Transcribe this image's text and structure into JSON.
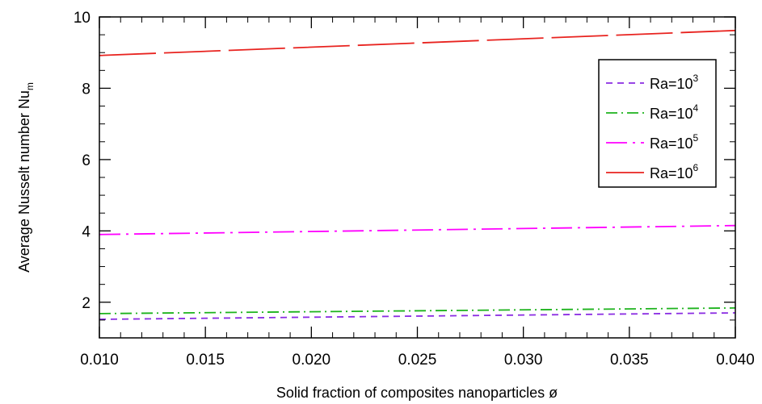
{
  "chart_data": {
    "type": "line",
    "title": "",
    "xlabel": "Solid fraction of composites nanoparticles ø",
    "ylabel_main": "Average Nusselt number Nu",
    "ylabel_sub": "m",
    "xlim": [
      0.01,
      0.04
    ],
    "ylim": [
      1.0,
      10.0
    ],
    "x_ticks": [
      0.01,
      0.015,
      0.02,
      0.025,
      0.03,
      0.035,
      0.04
    ],
    "x_tick_labels": [
      "0.010",
      "0.015",
      "0.020",
      "0.025",
      "0.030",
      "0.035",
      "0.040"
    ],
    "y_ticks": [
      2,
      4,
      6,
      8,
      10
    ],
    "y_tick_labels": [
      "2",
      "4",
      "6",
      "8",
      "10"
    ],
    "grid": false,
    "legend_position": "top-right",
    "series": [
      {
        "label_base": "Ra=10",
        "label_exp": "3",
        "color": "#8a2be2",
        "dash": "dashed",
        "x": [
          0.01,
          0.04
        ],
        "y": [
          1.52,
          1.7
        ]
      },
      {
        "label_base": "Ra=10",
        "label_exp": "4",
        "color": "#1db31d",
        "dash": "dash-dot",
        "x": [
          0.01,
          0.04
        ],
        "y": [
          1.68,
          1.84
        ]
      },
      {
        "label_base": "Ra=10",
        "label_exp": "5",
        "color": "#ff00ff",
        "dash": "long-dash-dot",
        "x": [
          0.01,
          0.04
        ],
        "y": [
          3.9,
          4.15
        ]
      },
      {
        "label_base": "Ra=10",
        "label_exp": "6",
        "color": "#e8231f",
        "dash": "long-dash",
        "x": [
          0.01,
          0.04
        ],
        "y": [
          8.92,
          9.62
        ]
      }
    ]
  }
}
